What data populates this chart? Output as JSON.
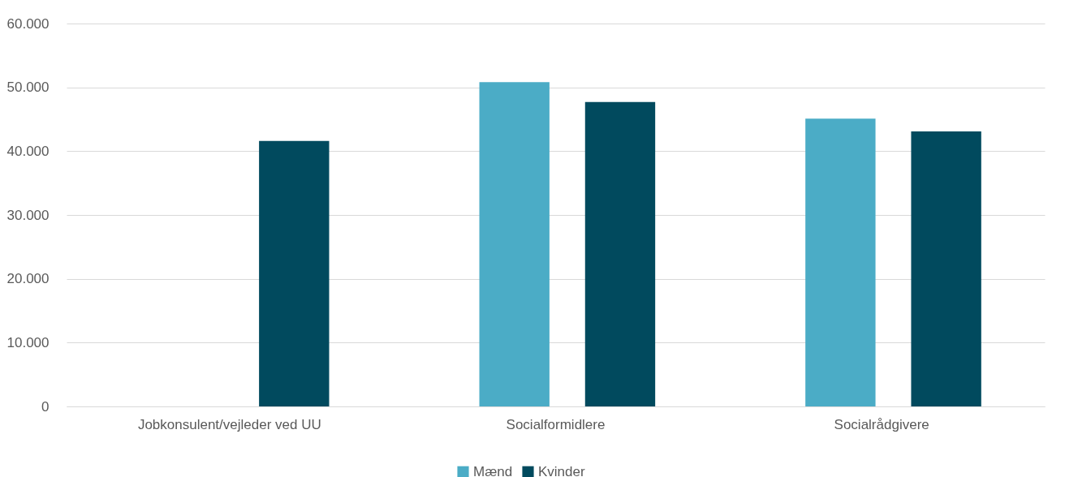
{
  "chart_data": {
    "type": "bar",
    "categories": [
      "Jobkonsulent/vejleder ved UU",
      "Socialformidlere",
      "Socialrådgivere"
    ],
    "series": [
      {
        "name": "Mænd",
        "color": "#4bacc6",
        "values": [
          null,
          50800,
          45100
        ]
      },
      {
        "name": "Kvinder",
        "color": "#014a5e",
        "values": [
          41600,
          47700,
          43100
        ]
      }
    ],
    "ylim": [
      0,
      60000
    ],
    "yticks": [
      0,
      {
        "value": 10000,
        "label": "10.000"
      },
      {
        "value": 20000,
        "label": "20.000"
      },
      {
        "value": 30000,
        "label": "30.000"
      },
      {
        "value": 40000,
        "label": "40.000"
      },
      {
        "value": 50000,
        "label": "50.000"
      },
      {
        "value": 60000,
        "label": "60.000"
      }
    ],
    "grid": "y",
    "legend": "bottom"
  }
}
